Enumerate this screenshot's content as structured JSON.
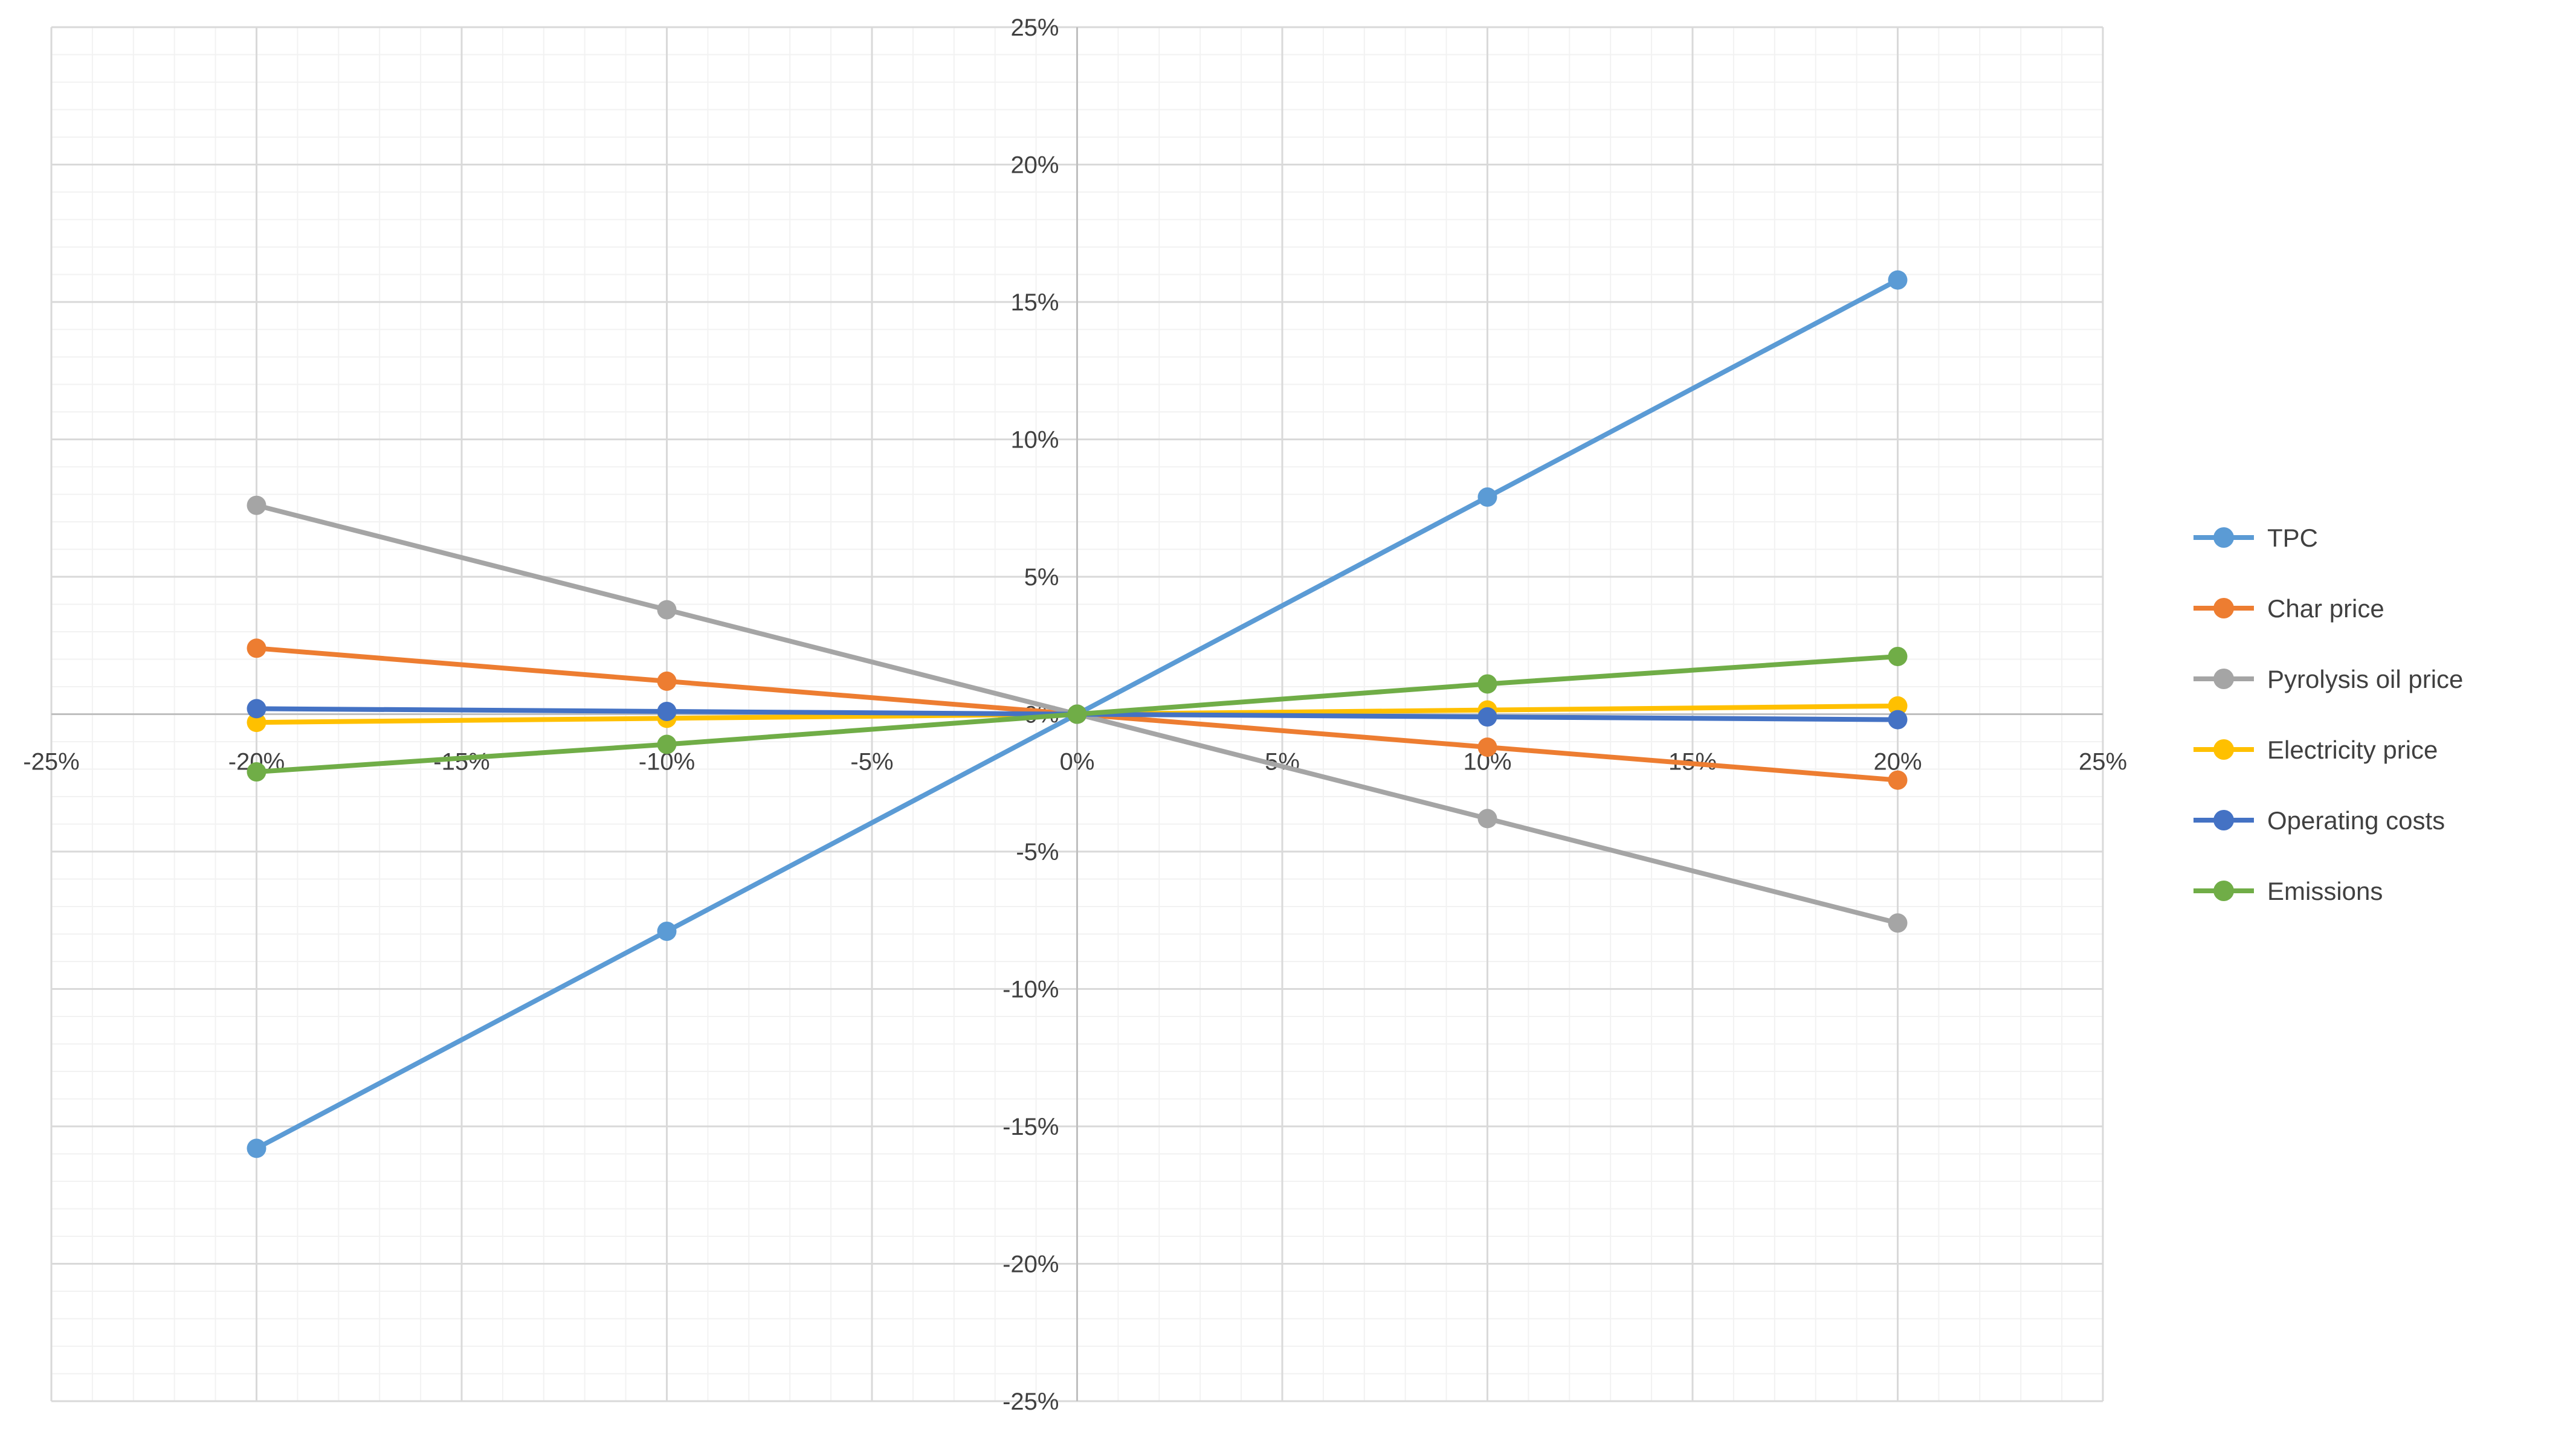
{
  "chart_data": {
    "type": "line",
    "title": "",
    "xlabel": "",
    "ylabel": "",
    "x": [
      -20,
      -10,
      0,
      10,
      20
    ],
    "series": [
      {
        "name": "TPC",
        "color": "#5B9BD5",
        "values": [
          -15.8,
          -7.9,
          0,
          7.9,
          15.8
        ]
      },
      {
        "name": "Char price",
        "color": "#ED7D31",
        "values": [
          2.4,
          1.2,
          0,
          -1.2,
          -2.4
        ]
      },
      {
        "name": "Pyrolysis oil price",
        "color": "#A5A5A5",
        "values": [
          7.6,
          3.8,
          0,
          -3.8,
          -7.6
        ]
      },
      {
        "name": "Electricity price",
        "color": "#FFC000",
        "values": [
          -0.3,
          -0.15,
          0,
          0.15,
          0.3
        ]
      },
      {
        "name": "Operating costs",
        "color": "#4472C4",
        "values": [
          0.2,
          0.1,
          0,
          -0.1,
          -0.2
        ]
      },
      {
        "name": "Emissions",
        "color": "#70AD47",
        "values": [
          -2.1,
          -1.1,
          0,
          1.1,
          2.1
        ]
      }
    ],
    "axes": {
      "x": {
        "min": -25,
        "max": 25,
        "major_step": 5,
        "minor_step": 1,
        "tick_labels": [
          "-25%",
          "-20%",
          "-15%",
          "-10%",
          "-5%",
          "0%",
          "5%",
          "10%",
          "15%",
          "20%",
          "25%"
        ]
      },
      "y": {
        "min": -25,
        "max": 25,
        "major_step": 5,
        "minor_step": 1,
        "tick_labels": [
          "-25%",
          "-20%",
          "-15%",
          "-10%",
          "-5%",
          "0%",
          "5%",
          "10%",
          "15%",
          "20%",
          "25%"
        ]
      }
    },
    "grid": {
      "major": true,
      "minor": true
    },
    "legend_position": "right",
    "marker": "circle"
  },
  "style": {
    "background": "#FFFFFF",
    "minor_grid_color": "#F2F2F2",
    "major_grid_color": "#D9D9D9",
    "axis_line_color": "#BFBFBF",
    "tick_label_color": "#404040",
    "legend_text_color": "#404040"
  }
}
